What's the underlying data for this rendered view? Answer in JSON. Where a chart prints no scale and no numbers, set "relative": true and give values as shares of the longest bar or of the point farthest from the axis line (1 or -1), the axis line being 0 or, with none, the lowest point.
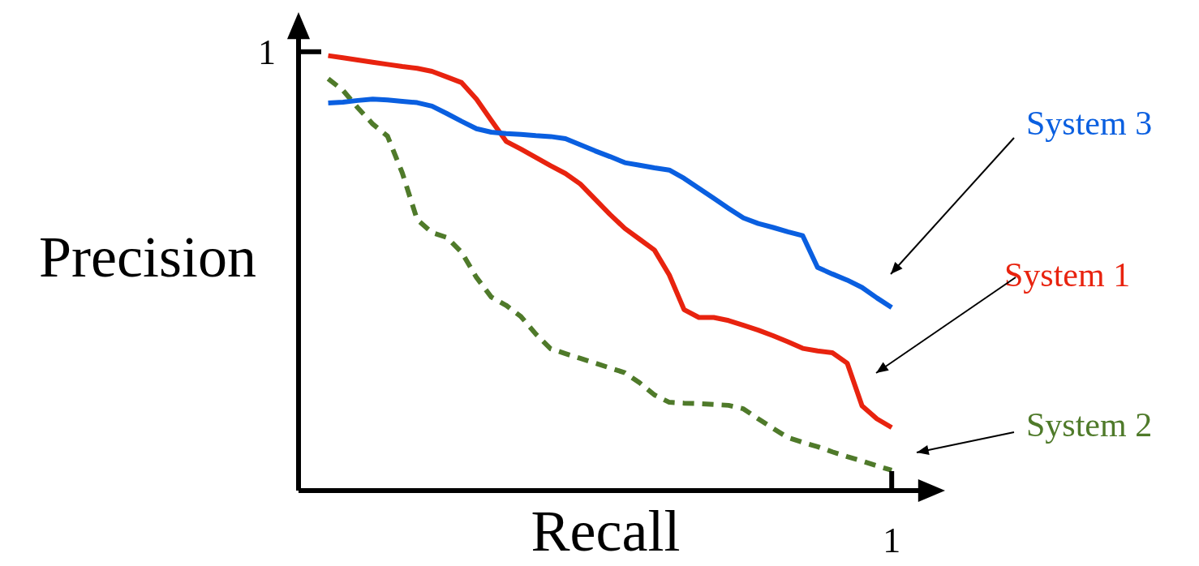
{
  "chart_data": {
    "type": "line",
    "xlabel": "Recall",
    "ylabel": "Precision",
    "relative": true,
    "annotations": [
      "1",
      "1"
    ],
    "categories": [
      null,
      null,
      null,
      null,
      null,
      null,
      null,
      null,
      null,
      null,
      null,
      null,
      null,
      null,
      null,
      null,
      null,
      null,
      null,
      null,
      null,
      null,
      null,
      null,
      null,
      null,
      null,
      null,
      null,
      null,
      null,
      null,
      null,
      null,
      null,
      null,
      null,
      null,
      null
    ],
    "series": [
      {
        "name": "System 3",
        "color": "#0a5fe0",
        "line_style": "solid",
        "values": [
          0.891,
          0.893,
          0.897,
          0.9,
          0.898,
          0.895,
          0.892,
          0.884,
          0.867,
          0.849,
          0.832,
          0.824,
          0.821,
          0.819,
          0.816,
          0.814,
          0.809,
          0.795,
          0.781,
          0.768,
          0.754,
          0.748,
          0.742,
          0.737,
          0.718,
          0.695,
          0.672,
          0.649,
          0.627,
          0.614,
          0.605,
          0.595,
          0.586,
          0.513,
          0.498,
          0.484,
          0.467,
          0.443,
          0.421
        ]
      },
      {
        "name": "System 1",
        "color": "#e8230f",
        "line_style": "solid",
        "values": [
          1.0,
          0.995,
          0.99,
          0.985,
          0.98,
          0.975,
          0.971,
          0.964,
          0.951,
          0.938,
          0.9,
          0.851,
          0.803,
          0.785,
          0.766,
          0.747,
          0.729,
          0.705,
          0.67,
          0.635,
          0.603,
          0.578,
          0.553,
          0.496,
          0.416,
          0.398,
          0.398,
          0.391,
          0.38,
          0.369,
          0.356,
          0.342,
          0.327,
          0.321,
          0.317,
          0.293,
          0.195,
          0.165,
          0.145
        ]
      },
      {
        "name": "System 2",
        "color": "#4f7a2a",
        "line_style": "dashed",
        "values": [
          0.947,
          0.92,
          0.88,
          0.843,
          0.815,
          0.73,
          0.623,
          0.593,
          0.582,
          0.548,
          0.49,
          0.445,
          0.426,
          0.4,
          0.36,
          0.326,
          0.315,
          0.304,
          0.293,
          0.282,
          0.271,
          0.248,
          0.22,
          0.203,
          0.201,
          0.2,
          0.198,
          0.196,
          0.188,
          0.165,
          0.143,
          0.122,
          0.111,
          0.101,
          0.089,
          0.078,
          0.068,
          0.057,
          0.047
        ]
      }
    ]
  }
}
